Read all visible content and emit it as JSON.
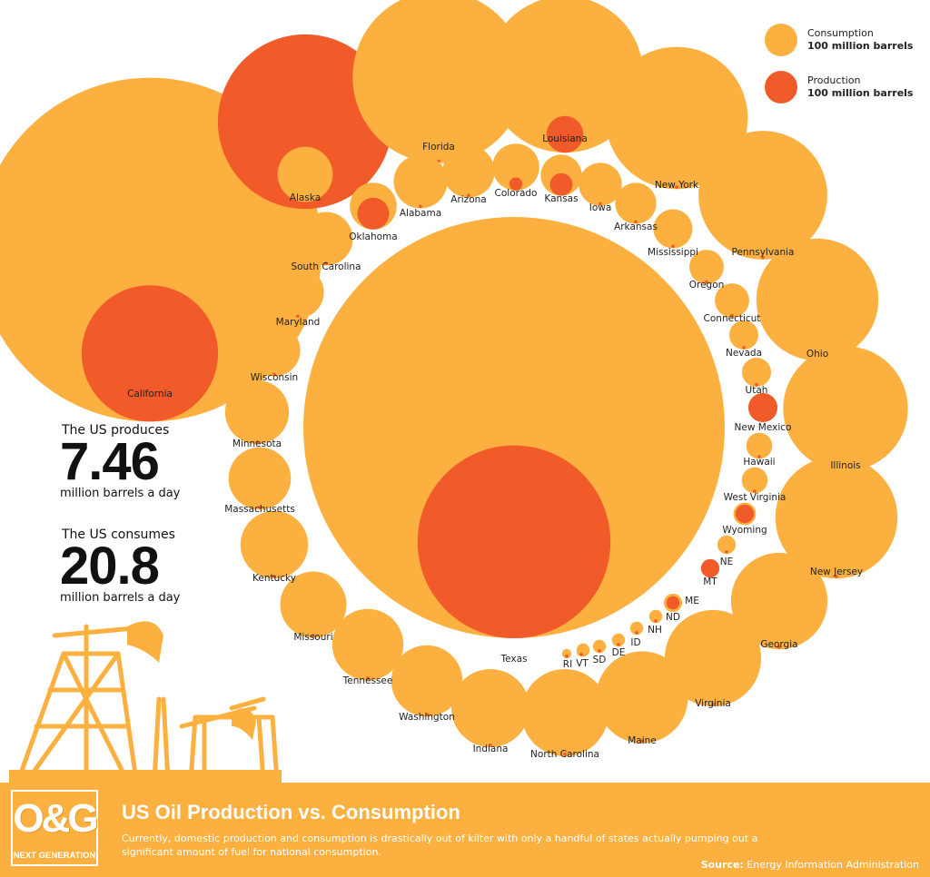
{
  "colors": {
    "consumption": "#fbb040",
    "production": "#f15a29",
    "footer": "#fbb040",
    "silhouette": "#fbb040"
  },
  "legend": {
    "consumption_label": "Consumption",
    "production_label": "Production",
    "unit": "100 million barrels",
    "placement": "top-right"
  },
  "stats": {
    "produces_lead": "The US produces",
    "produces_value": "7.46",
    "produces_unit": "million barrels a day",
    "consumes_lead": "The US consumes",
    "consumes_value": "20.8",
    "consumes_unit": "million barrels a day"
  },
  "footer": {
    "logo_text": "O&G",
    "logo_subtext": "NEXT GENERATION",
    "title": "US Oil Production vs. Consumption",
    "description": "Currently, domestic production and consumption is drastically out of kilter with only a handful of states actually pumping out a significant amount of fuel for national consumption.",
    "source_label": "Source:",
    "source_value": "Energy Information Administration"
  },
  "chart_data": {
    "type": "bubble",
    "title": "US Oil Production vs. Consumption",
    "unit": "100 million barrels",
    "size_encoding": "area",
    "series": [
      {
        "name": "Consumption",
        "color": "#fbb040"
      },
      {
        "name": "Production",
        "color": "#f15a29"
      }
    ],
    "states": [
      {
        "name": "California",
        "consumption": 7.0,
        "production": 1.1
      },
      {
        "name": "Texas",
        "consumption": 10.5,
        "production": 2.2
      },
      {
        "name": "Alaska",
        "consumption": 0.18,
        "production": 1.8
      },
      {
        "name": "Florida",
        "consumption": 1.75,
        "production": 0.0
      },
      {
        "name": "Louisiana",
        "consumption": 1.45,
        "production": 0.08
      },
      {
        "name": "New York",
        "consumption": 1.2,
        "production": 0.0
      },
      {
        "name": "Pennsylvania",
        "consumption": 0.98,
        "production": 0.0
      },
      {
        "name": "Ohio",
        "consumption": 0.88,
        "production": 0.0
      },
      {
        "name": "Illinois",
        "consumption": 0.92,
        "production": 0.0
      },
      {
        "name": "New Jersey",
        "consumption": 0.88,
        "production": 0.0
      },
      {
        "name": "Georgia",
        "consumption": 0.55,
        "production": 0.0
      },
      {
        "name": "Virginia",
        "consumption": 0.55,
        "production": 0.0
      },
      {
        "name": "Maine",
        "consumption": 0.5,
        "production": 0.0
      },
      {
        "name": "North Carolina",
        "consumption": 0.45,
        "production": 0.0
      },
      {
        "name": "Indiana",
        "consumption": 0.36,
        "production": 0.0
      },
      {
        "name": "Washington",
        "consumption": 0.3,
        "production": 0.0
      },
      {
        "name": "Tennessee",
        "consumption": 0.3,
        "production": 0.0
      },
      {
        "name": "Missouri",
        "consumption": 0.26,
        "production": 0.0
      },
      {
        "name": "Kentucky",
        "consumption": 0.27,
        "production": 0.0
      },
      {
        "name": "Massachusetts",
        "consumption": 0.23,
        "production": 0.0
      },
      {
        "name": "Minnesota",
        "consumption": 0.24,
        "production": 0.0
      },
      {
        "name": "Wisconsin",
        "consumption": 0.16,
        "production": 0.0
      },
      {
        "name": "Maryland",
        "consumption": 0.16,
        "production": 0.0
      },
      {
        "name": "South Carolina",
        "consumption": 0.17,
        "production": 0.0
      },
      {
        "name": "Oklahoma",
        "consumption": 0.13,
        "production": 0.06
      },
      {
        "name": "Alabama",
        "consumption": 0.17,
        "production": 0.0
      },
      {
        "name": "Arizona",
        "consumption": 0.16,
        "production": 0.0
      },
      {
        "name": "Colorado",
        "consumption": 0.13,
        "production": 0.01
      },
      {
        "name": "Kansas",
        "consumption": 0.1,
        "production": 0.03
      },
      {
        "name": "Iowa",
        "consumption": 0.11,
        "production": 0.0
      },
      {
        "name": "Arkansas",
        "consumption": 0.1,
        "production": 0.0
      },
      {
        "name": "Mississippi",
        "consumption": 0.09,
        "production": 0.0
      },
      {
        "name": "Oregon",
        "consumption": 0.07,
        "production": 0.0
      },
      {
        "name": "Connecticut",
        "consumption": 0.07,
        "production": 0.0
      },
      {
        "name": "Nevada",
        "consumption": 0.05,
        "production": 0.0
      },
      {
        "name": "Utah",
        "consumption": 0.05,
        "production": 0.0
      },
      {
        "name": "New Mexico",
        "consumption": 0.05,
        "production": 0.05
      },
      {
        "name": "Hawaii",
        "consumption": 0.04,
        "production": 0.0
      },
      {
        "name": "West Virginia",
        "consumption": 0.04,
        "production": 0.0
      },
      {
        "name": "Wyoming",
        "consumption": 0.03,
        "production": 0.02
      },
      {
        "name": "NE",
        "consumption": 0.02,
        "production": 0.0
      },
      {
        "name": "MT",
        "consumption": 0.02,
        "production": 0.02
      },
      {
        "name": "ME",
        "consumption": 0.02,
        "production": 0.01
      },
      {
        "name": "ND",
        "consumption": 0.01,
        "production": 0.0
      },
      {
        "name": "NH",
        "consumption": 0.01,
        "production": 0.0
      },
      {
        "name": "ID",
        "consumption": 0.01,
        "production": 0.0
      },
      {
        "name": "DE",
        "consumption": 0.01,
        "production": 0.0
      },
      {
        "name": "SD",
        "consumption": 0.01,
        "production": 0.0
      },
      {
        "name": "VT",
        "consumption": 0.005,
        "production": 0.0
      },
      {
        "name": "RI",
        "consumption": 0.005,
        "production": 0.0
      }
    ]
  }
}
